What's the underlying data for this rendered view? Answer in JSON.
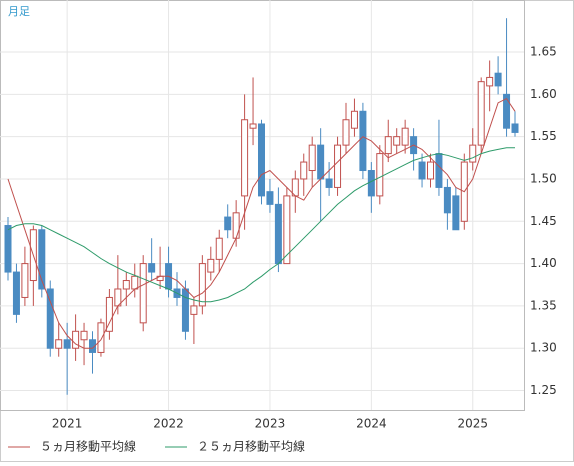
{
  "chart_data": {
    "type": "candlestick",
    "label": "月足",
    "categories": [
      null,
      null,
      null,
      null,
      null,
      null,
      null,
      "2021",
      null,
      null,
      null,
      null,
      null,
      null,
      null,
      null,
      null,
      null,
      null,
      "2022",
      null,
      null,
      null,
      null,
      null,
      null,
      null,
      null,
      null,
      null,
      null,
      "2023",
      null,
      null,
      null,
      null,
      null,
      null,
      null,
      null,
      null,
      null,
      null,
      "2024",
      null,
      null,
      null,
      null,
      null,
      null,
      null,
      null,
      null,
      null,
      null,
      "2025",
      null,
      null,
      null,
      null,
      null
    ],
    "open": [
      1.445,
      1.39,
      1.36,
      1.38,
      1.44,
      1.37,
      1.3,
      1.31,
      1.3,
      1.31,
      1.31,
      1.295,
      1.32,
      1.35,
      1.37,
      1.37,
      1.33,
      1.4,
      1.38,
      1.4,
      1.37,
      1.37,
      1.34,
      1.35,
      1.39,
      1.405,
      1.455,
      1.43,
      1.48,
      1.56,
      1.565,
      1.485,
      1.47,
      1.4,
      1.48,
      1.5,
      1.51,
      1.54,
      1.5,
      1.49,
      1.54,
      1.56,
      1.58,
      1.51,
      1.48,
      1.53,
      1.54,
      1.54,
      1.55,
      1.52,
      1.5,
      1.53,
      1.49,
      1.48,
      1.45,
      1.52,
      1.54,
      1.61,
      1.625,
      1.6,
      1.565
    ],
    "high": [
      1.455,
      1.4,
      1.42,
      1.445,
      1.445,
      1.38,
      1.33,
      1.33,
      1.34,
      1.33,
      1.32,
      1.335,
      1.37,
      1.41,
      1.39,
      1.4,
      1.41,
      1.43,
      1.42,
      1.42,
      1.39,
      1.38,
      1.36,
      1.41,
      1.42,
      1.44,
      1.47,
      1.475,
      1.6,
      1.62,
      1.57,
      1.5,
      1.49,
      1.49,
      1.51,
      1.53,
      1.55,
      1.56,
      1.52,
      1.55,
      1.59,
      1.595,
      1.59,
      1.52,
      1.54,
      1.57,
      1.56,
      1.57,
      1.56,
      1.53,
      1.53,
      1.57,
      1.5,
      1.49,
      1.53,
      1.56,
      1.62,
      1.64,
      1.645,
      1.69,
      1.58
    ],
    "low": [
      1.38,
      1.33,
      1.35,
      1.35,
      1.36,
      1.29,
      1.29,
      1.245,
      1.285,
      1.28,
      1.27,
      1.29,
      1.31,
      1.34,
      1.35,
      1.36,
      1.32,
      1.38,
      1.37,
      1.36,
      1.35,
      1.31,
      1.305,
      1.34,
      1.38,
      1.39,
      1.43,
      1.42,
      1.44,
      1.54,
      1.47,
      1.46,
      1.39,
      1.4,
      1.46,
      1.48,
      1.49,
      1.45,
      1.48,
      1.48,
      1.53,
      1.55,
      1.5,
      1.46,
      1.47,
      1.52,
      1.53,
      1.53,
      1.51,
      1.49,
      1.49,
      1.48,
      1.44,
      1.44,
      1.44,
      1.51,
      1.53,
      1.58,
      1.6,
      1.55,
      1.55
    ],
    "close": [
      1.39,
      1.34,
      1.4,
      1.44,
      1.37,
      1.3,
      1.31,
      1.3,
      1.32,
      1.32,
      1.295,
      1.33,
      1.36,
      1.37,
      1.38,
      1.385,
      1.4,
      1.39,
      1.385,
      1.37,
      1.36,
      1.32,
      1.35,
      1.4,
      1.405,
      1.43,
      1.44,
      1.46,
      1.57,
      1.565,
      1.48,
      1.47,
      1.4,
      1.48,
      1.5,
      1.52,
      1.54,
      1.5,
      1.49,
      1.54,
      1.57,
      1.58,
      1.51,
      1.48,
      1.53,
      1.55,
      1.55,
      1.56,
      1.53,
      1.5,
      1.52,
      1.49,
      1.46,
      1.44,
      1.52,
      1.54,
      1.615,
      1.62,
      1.61,
      1.56,
      1.555
    ],
    "up_color": "#c0504d",
    "down_color": "#4a8bc2",
    "series": [
      {
        "name": "５ヵ月移動平均線",
        "color": "#c0504d",
        "values": [
          1.5,
          1.47,
          1.44,
          1.41,
          1.38,
          1.355,
          1.33,
          1.315,
          1.305,
          1.3,
          1.3,
          1.31,
          1.33,
          1.35,
          1.36,
          1.37,
          1.375,
          1.38,
          1.385,
          1.385,
          1.38,
          1.37,
          1.36,
          1.365,
          1.375,
          1.39,
          1.41,
          1.43,
          1.46,
          1.49,
          1.505,
          1.51,
          1.5,
          1.49,
          1.48,
          1.475,
          1.49,
          1.5,
          1.51,
          1.52,
          1.53,
          1.54,
          1.55,
          1.545,
          1.535,
          1.525,
          1.53,
          1.535,
          1.54,
          1.535,
          1.525,
          1.515,
          1.505,
          1.49,
          1.485,
          1.5,
          1.53,
          1.56,
          1.59,
          1.595,
          1.58
        ]
      },
      {
        "name": "２５ヵ月移動平均線",
        "color": "#2e9b6a",
        "values": [
          1.44,
          1.445,
          1.447,
          1.447,
          1.445,
          1.44,
          1.435,
          1.43,
          1.425,
          1.42,
          1.413,
          1.406,
          1.4,
          1.395,
          1.39,
          1.386,
          1.382,
          1.378,
          1.374,
          1.37,
          1.365,
          1.36,
          1.357,
          1.355,
          1.355,
          1.357,
          1.36,
          1.365,
          1.37,
          1.378,
          1.385,
          1.393,
          1.4,
          1.41,
          1.42,
          1.43,
          1.44,
          1.45,
          1.46,
          1.47,
          1.478,
          1.486,
          1.492,
          1.497,
          1.502,
          1.507,
          1.512,
          1.517,
          1.522,
          1.525,
          1.528,
          1.53,
          1.528,
          1.525,
          1.522,
          1.525,
          1.53,
          1.533,
          1.535,
          1.537,
          1.537
        ]
      }
    ],
    "ylim": [
      1.227,
      1.7115
    ],
    "yticks": [
      {
        "value": 1.25,
        "label": "1.25"
      },
      {
        "value": 1.3,
        "label": "1.30"
      },
      {
        "value": 1.35,
        "label": "1.35"
      },
      {
        "value": 1.4,
        "label": "1.40"
      },
      {
        "value": 1.45,
        "label": "1.45"
      },
      {
        "value": 1.5,
        "label": "1.50"
      },
      {
        "value": 1.55,
        "label": "1.55"
      },
      {
        "value": 1.6,
        "label": "1.60"
      },
      {
        "value": 1.65,
        "label": "1.65"
      }
    ],
    "grid": true
  }
}
